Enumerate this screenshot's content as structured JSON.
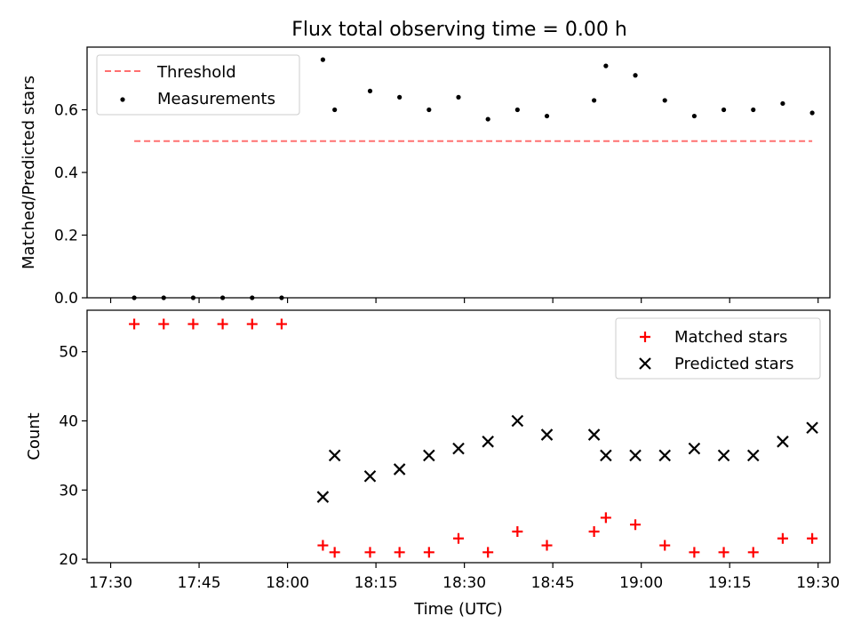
{
  "title": "Flux total observing time = 0.00 h",
  "colors": {
    "threshold": "#ff7070",
    "measurement": "#000000",
    "matched": "#ff0000",
    "predicted": "#000000"
  },
  "chart_data": [
    {
      "type": "scatter",
      "panel": "top",
      "xlabel": "",
      "ylabel": "Matched/Predicted stars",
      "xlim": [
        "17:26",
        "19:32"
      ],
      "ylim": [
        0.0,
        0.8
      ],
      "yticks": [
        0.0,
        0.2,
        0.4,
        0.6
      ],
      "ytick_labels": [
        "0.0",
        "0.2",
        "0.4",
        "0.6"
      ],
      "grid": false,
      "legend_position": "upper-left",
      "legend": [
        "Threshold",
        "Measurements"
      ],
      "series": [
        {
          "name": "Threshold",
          "style": "dashed-line",
          "x": [
            "17:34",
            "19:29"
          ],
          "y": [
            0.5,
            0.5
          ]
        },
        {
          "name": "Measurements",
          "style": "dot",
          "x": [
            "17:34",
            "17:39",
            "17:44",
            "17:49",
            "17:54",
            "17:59",
            "18:06",
            "18:08",
            "18:14",
            "18:19",
            "18:24",
            "18:29",
            "18:34",
            "18:39",
            "18:44",
            "18:52",
            "18:54",
            "18:59",
            "19:04",
            "19:09",
            "19:14",
            "19:19",
            "19:24",
            "19:29"
          ],
          "y": [
            0.0,
            0.0,
            0.0,
            0.0,
            0.0,
            0.0,
            0.76,
            0.6,
            0.66,
            0.64,
            0.6,
            0.64,
            0.57,
            0.6,
            0.58,
            0.63,
            0.74,
            0.71,
            0.63,
            0.58,
            0.6,
            0.6,
            0.62,
            0.59
          ]
        }
      ]
    },
    {
      "type": "scatter",
      "panel": "bottom",
      "xlabel": "Time (UTC)",
      "ylabel": "Count",
      "xlim": [
        "17:26",
        "19:32"
      ],
      "xticks": [
        "17:30",
        "17:45",
        "18:00",
        "18:15",
        "18:30",
        "18:45",
        "19:00",
        "19:15",
        "19:30"
      ],
      "ylim": [
        19.5,
        56
      ],
      "yticks": [
        20,
        30,
        40,
        50
      ],
      "ytick_labels": [
        "20",
        "30",
        "40",
        "50"
      ],
      "grid": false,
      "legend_position": "upper-right",
      "legend": [
        "Matched stars",
        "Predicted stars"
      ],
      "series": [
        {
          "name": "Matched stars",
          "marker": "plus",
          "x": [
            "17:34",
            "17:39",
            "17:44",
            "17:49",
            "17:54",
            "17:59",
            "18:06",
            "18:08",
            "18:14",
            "18:19",
            "18:24",
            "18:29",
            "18:34",
            "18:39",
            "18:44",
            "18:52",
            "18:54",
            "18:59",
            "19:04",
            "19:09",
            "19:14",
            "19:19",
            "19:24",
            "19:29"
          ],
          "y": [
            54,
            54,
            54,
            54,
            54,
            54,
            22,
            21,
            21,
            21,
            21,
            23,
            21,
            24,
            22,
            24,
            26,
            25,
            22,
            21,
            21,
            21,
            23,
            23
          ]
        },
        {
          "name": "Predicted stars",
          "marker": "x",
          "x": [
            "18:06",
            "18:08",
            "18:14",
            "18:19",
            "18:24",
            "18:29",
            "18:34",
            "18:39",
            "18:44",
            "18:52",
            "18:54",
            "18:59",
            "19:04",
            "19:09",
            "19:14",
            "19:19",
            "19:24",
            "19:29"
          ],
          "y": [
            29,
            35,
            32,
            33,
            35,
            36,
            37,
            40,
            38,
            38,
            35,
            35,
            35,
            36,
            35,
            35,
            37,
            39
          ]
        }
      ]
    }
  ]
}
